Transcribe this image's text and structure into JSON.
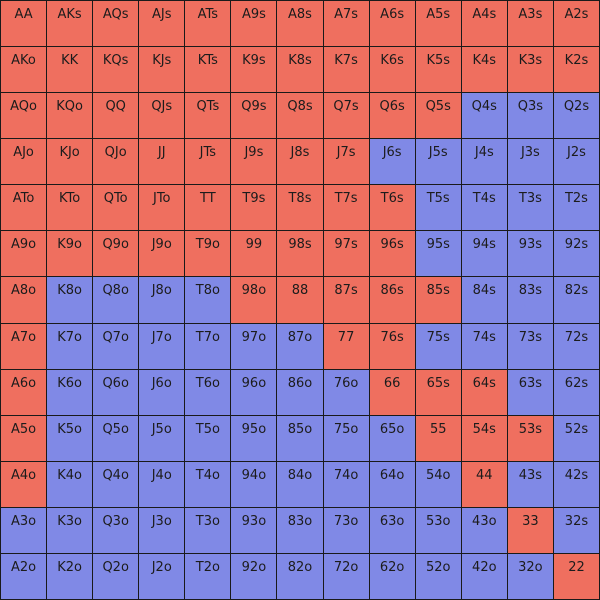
{
  "grid": {
    "rows": [
      [
        {
          "label": "AA",
          "color": "#ef6f5f"
        },
        {
          "label": "AKs",
          "color": "#ef6f5f"
        },
        {
          "label": "AQs",
          "color": "#ef6f5f"
        },
        {
          "label": "AJs",
          "color": "#ef6f5f"
        },
        {
          "label": "ATs",
          "color": "#ef6f5f"
        },
        {
          "label": "A9s",
          "color": "#ef6f5f"
        },
        {
          "label": "A8s",
          "color": "#ef6f5f"
        },
        {
          "label": "A7s",
          "color": "#ef6f5f"
        },
        {
          "label": "A6s",
          "color": "#ef6f5f"
        },
        {
          "label": "A5s",
          "color": "#ef6f5f"
        },
        {
          "label": "A4s",
          "color": "#ef6f5f"
        },
        {
          "label": "A3s",
          "color": "#ef6f5f"
        },
        {
          "label": "A2s",
          "color": "#ef6f5f"
        }
      ],
      [
        {
          "label": "AKo",
          "color": "#ef6f5f"
        },
        {
          "label": "KK",
          "color": "#ef6f5f"
        },
        {
          "label": "KQs",
          "color": "#ef6f5f"
        },
        {
          "label": "KJs",
          "color": "#ef6f5f"
        },
        {
          "label": "KTs",
          "color": "#ef6f5f"
        },
        {
          "label": "K9s",
          "color": "#ef6f5f"
        },
        {
          "label": "K8s",
          "color": "#ef6f5f"
        },
        {
          "label": "K7s",
          "color": "#ef6f5f"
        },
        {
          "label": "K6s",
          "color": "#ef6f5f"
        },
        {
          "label": "K5s",
          "color": "#ef6f5f"
        },
        {
          "label": "K4s",
          "color": "#ef6f5f"
        },
        {
          "label": "K3s",
          "color": "#ef6f5f"
        },
        {
          "label": "K2s",
          "color": "#ef6f5f"
        }
      ],
      [
        {
          "label": "AQo",
          "color": "#ef6f5f"
        },
        {
          "label": "KQo",
          "color": "#ef6f5f"
        },
        {
          "label": "QQ",
          "color": "#ef6f5f"
        },
        {
          "label": "QJs",
          "color": "#ef6f5f"
        },
        {
          "label": "QTs",
          "color": "#ef6f5f"
        },
        {
          "label": "Q9s",
          "color": "#ef6f5f"
        },
        {
          "label": "Q8s",
          "color": "#ef6f5f"
        },
        {
          "label": "Q7s",
          "color": "#ef6f5f"
        },
        {
          "label": "Q6s",
          "color": "#ef6f5f"
        },
        {
          "label": "Q5s",
          "color": "#ef6f5f"
        },
        {
          "label": "Q4s",
          "color": "#8089e6"
        },
        {
          "label": "Q3s",
          "color": "#8089e6"
        },
        {
          "label": "Q2s",
          "color": "#8089e6"
        }
      ],
      [
        {
          "label": "AJo",
          "color": "#ef6f5f"
        },
        {
          "label": "KJo",
          "color": "#ef6f5f"
        },
        {
          "label": "QJo",
          "color": "#ef6f5f"
        },
        {
          "label": "JJ",
          "color": "#ef6f5f"
        },
        {
          "label": "JTs",
          "color": "#ef6f5f"
        },
        {
          "label": "J9s",
          "color": "#ef6f5f"
        },
        {
          "label": "J8s",
          "color": "#ef6f5f"
        },
        {
          "label": "J7s",
          "color": "#ef6f5f"
        },
        {
          "label": "J6s",
          "color": "#8089e6"
        },
        {
          "label": "J5s",
          "color": "#8089e6"
        },
        {
          "label": "J4s",
          "color": "#8089e6"
        },
        {
          "label": "J3s",
          "color": "#8089e6"
        },
        {
          "label": "J2s",
          "color": "#8089e6"
        }
      ],
      [
        {
          "label": "ATo",
          "color": "#ef6f5f"
        },
        {
          "label": "KTo",
          "color": "#ef6f5f"
        },
        {
          "label": "QTo",
          "color": "#ef6f5f"
        },
        {
          "label": "JTo",
          "color": "#ef6f5f"
        },
        {
          "label": "TT",
          "color": "#ef6f5f"
        },
        {
          "label": "T9s",
          "color": "#ef6f5f"
        },
        {
          "label": "T8s",
          "color": "#ef6f5f"
        },
        {
          "label": "T7s",
          "color": "#ef6f5f"
        },
        {
          "label": "T6s",
          "color": "#ef6f5f"
        },
        {
          "label": "T5s",
          "color": "#8089e6"
        },
        {
          "label": "T4s",
          "color": "#8089e6"
        },
        {
          "label": "T3s",
          "color": "#8089e6"
        },
        {
          "label": "T2s",
          "color": "#8089e6"
        }
      ],
      [
        {
          "label": "A9o",
          "color": "#ef6f5f"
        },
        {
          "label": "K9o",
          "color": "#ef6f5f"
        },
        {
          "label": "Q9o",
          "color": "#ef6f5f"
        },
        {
          "label": "J9o",
          "color": "#ef6f5f"
        },
        {
          "label": "T9o",
          "color": "#ef6f5f"
        },
        {
          "label": "99",
          "color": "#ef6f5f"
        },
        {
          "label": "98s",
          "color": "#ef6f5f"
        },
        {
          "label": "97s",
          "color": "#ef6f5f"
        },
        {
          "label": "96s",
          "color": "#ef6f5f"
        },
        {
          "label": "95s",
          "color": "#8089e6"
        },
        {
          "label": "94s",
          "color": "#8089e6"
        },
        {
          "label": "93s",
          "color": "#8089e6"
        },
        {
          "label": "92s",
          "color": "#8089e6"
        }
      ],
      [
        {
          "label": "A8o",
          "color": "#ef6f5f"
        },
        {
          "label": "K8o",
          "color": "#8089e6"
        },
        {
          "label": "Q8o",
          "color": "#8089e6"
        },
        {
          "label": "J8o",
          "color": "#8089e6"
        },
        {
          "label": "T8o",
          "color": "#8089e6"
        },
        {
          "label": "98o",
          "color": "#ef6f5f"
        },
        {
          "label": "88",
          "color": "#ef6f5f"
        },
        {
          "label": "87s",
          "color": "#ef6f5f"
        },
        {
          "label": "86s",
          "color": "#ef6f5f"
        },
        {
          "label": "85s",
          "color": "#ef6f5f"
        },
        {
          "label": "84s",
          "color": "#8089e6"
        },
        {
          "label": "83s",
          "color": "#8089e6"
        },
        {
          "label": "82s",
          "color": "#8089e6"
        }
      ],
      [
        {
          "label": "A7o",
          "color": "#ef6f5f"
        },
        {
          "label": "K7o",
          "color": "#8089e6"
        },
        {
          "label": "Q7o",
          "color": "#8089e6"
        },
        {
          "label": "J7o",
          "color": "#8089e6"
        },
        {
          "label": "T7o",
          "color": "#8089e6"
        },
        {
          "label": "97o",
          "color": "#8089e6"
        },
        {
          "label": "87o",
          "color": "#8089e6"
        },
        {
          "label": "77",
          "color": "#ef6f5f"
        },
        {
          "label": "76s",
          "color": "#ef6f5f"
        },
        {
          "label": "75s",
          "color": "#8089e6"
        },
        {
          "label": "74s",
          "color": "#8089e6"
        },
        {
          "label": "73s",
          "color": "#8089e6"
        },
        {
          "label": "72s",
          "color": "#8089e6"
        }
      ],
      [
        {
          "label": "A6o",
          "color": "#ef6f5f"
        },
        {
          "label": "K6o",
          "color": "#8089e6"
        },
        {
          "label": "Q6o",
          "color": "#8089e6"
        },
        {
          "label": "J6o",
          "color": "#8089e6"
        },
        {
          "label": "T6o",
          "color": "#8089e6"
        },
        {
          "label": "96o",
          "color": "#8089e6"
        },
        {
          "label": "86o",
          "color": "#8089e6"
        },
        {
          "label": "76o",
          "color": "#8089e6"
        },
        {
          "label": "66",
          "color": "#ef6f5f"
        },
        {
          "label": "65s",
          "color": "#ef6f5f"
        },
        {
          "label": "64s",
          "color": "#ef6f5f"
        },
        {
          "label": "63s",
          "color": "#8089e6"
        },
        {
          "label": "62s",
          "color": "#8089e6"
        }
      ],
      [
        {
          "label": "A5o",
          "color": "#ef6f5f"
        },
        {
          "label": "K5o",
          "color": "#8089e6"
        },
        {
          "label": "Q5o",
          "color": "#8089e6"
        },
        {
          "label": "J5o",
          "color": "#8089e6"
        },
        {
          "label": "T5o",
          "color": "#8089e6"
        },
        {
          "label": "95o",
          "color": "#8089e6"
        },
        {
          "label": "85o",
          "color": "#8089e6"
        },
        {
          "label": "75o",
          "color": "#8089e6"
        },
        {
          "label": "65o",
          "color": "#8089e6"
        },
        {
          "label": "55",
          "color": "#ef6f5f"
        },
        {
          "label": "54s",
          "color": "#ef6f5f"
        },
        {
          "label": "53s",
          "color": "#ef6f5f"
        },
        {
          "label": "52s",
          "color": "#8089e6"
        }
      ],
      [
        {
          "label": "A4o",
          "color": "#ef6f5f"
        },
        {
          "label": "K4o",
          "color": "#8089e6"
        },
        {
          "label": "Q4o",
          "color": "#8089e6"
        },
        {
          "label": "J4o",
          "color": "#8089e6"
        },
        {
          "label": "T4o",
          "color": "#8089e6"
        },
        {
          "label": "94o",
          "color": "#8089e6"
        },
        {
          "label": "84o",
          "color": "#8089e6"
        },
        {
          "label": "74o",
          "color": "#8089e6"
        },
        {
          "label": "64o",
          "color": "#8089e6"
        },
        {
          "label": "54o",
          "color": "#8089e6"
        },
        {
          "label": "44",
          "color": "#ef6f5f"
        },
        {
          "label": "43s",
          "color": "#8089e6"
        },
        {
          "label": "42s",
          "color": "#8089e6"
        }
      ],
      [
        {
          "label": "A3o",
          "color": "#8089e6"
        },
        {
          "label": "K3o",
          "color": "#8089e6"
        },
        {
          "label": "Q3o",
          "color": "#8089e6"
        },
        {
          "label": "J3o",
          "color": "#8089e6"
        },
        {
          "label": "T3o",
          "color": "#8089e6"
        },
        {
          "label": "93o",
          "color": "#8089e6"
        },
        {
          "label": "83o",
          "color": "#8089e6"
        },
        {
          "label": "73o",
          "color": "#8089e6"
        },
        {
          "label": "63o",
          "color": "#8089e6"
        },
        {
          "label": "53o",
          "color": "#8089e6"
        },
        {
          "label": "43o",
          "color": "#8089e6"
        },
        {
          "label": "33",
          "color": "#ef6f5f"
        },
        {
          "label": "32s",
          "color": "#8089e6"
        }
      ],
      [
        {
          "label": "A2o",
          "color": "#8089e6"
        },
        {
          "label": "K2o",
          "color": "#8089e6"
        },
        {
          "label": "Q2o",
          "color": "#8089e6"
        },
        {
          "label": "J2o",
          "color": "#8089e6"
        },
        {
          "label": "T2o",
          "color": "#8089e6"
        },
        {
          "label": "92o",
          "color": "#8089e6"
        },
        {
          "label": "82o",
          "color": "#8089e6"
        },
        {
          "label": "72o",
          "color": "#8089e6"
        },
        {
          "label": "62o",
          "color": "#8089e6"
        },
        {
          "label": "52o",
          "color": "#8089e6"
        },
        {
          "label": "42o",
          "color": "#8089e6"
        },
        {
          "label": "32o",
          "color": "#8089e6"
        },
        {
          "label": "22",
          "color": "#ef6f5f"
        }
      ]
    ]
  }
}
